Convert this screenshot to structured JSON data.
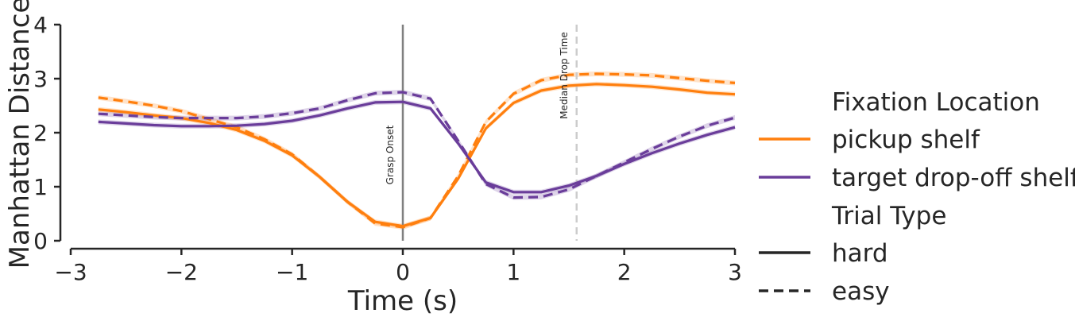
{
  "chart_data": {
    "type": "line",
    "xlabel": "Time (s)",
    "ylabel": "Manhattan Distance",
    "xlim": [
      -3,
      3
    ],
    "ylim": [
      0,
      4
    ],
    "xticks": [
      -3,
      -2,
      -1,
      0,
      1,
      2,
      3
    ],
    "yticks": [
      0,
      1,
      2,
      3,
      4
    ],
    "xtick_labels": [
      "−3",
      "−2",
      "−1",
      "0",
      "1",
      "2",
      "3"
    ],
    "ytick_labels": [
      "0",
      "1",
      "2",
      "3",
      "4"
    ],
    "x": [
      -2.75,
      -2.5,
      -2.25,
      -2.0,
      -1.75,
      -1.5,
      -1.25,
      -1.0,
      -0.75,
      -0.5,
      -0.25,
      0.0,
      0.25,
      0.5,
      0.75,
      1.0,
      1.25,
      1.5,
      1.75,
      2.0,
      2.25,
      2.5,
      2.75,
      3.0
    ],
    "series": [
      {
        "location": "pickup shelf",
        "trial": "hard",
        "color": "#ff7f0e",
        "dash": false,
        "values": [
          2.43,
          2.38,
          2.32,
          2.27,
          2.18,
          2.05,
          1.85,
          1.58,
          1.18,
          0.72,
          0.35,
          0.27,
          0.42,
          1.15,
          2.08,
          2.55,
          2.78,
          2.87,
          2.9,
          2.88,
          2.85,
          2.8,
          2.74,
          2.71
        ]
      },
      {
        "location": "pickup shelf",
        "trial": "easy",
        "color": "#ff7f0e",
        "dash": true,
        "values": [
          2.65,
          2.58,
          2.5,
          2.4,
          2.25,
          2.1,
          1.88,
          1.6,
          1.18,
          0.72,
          0.32,
          0.25,
          0.42,
          1.2,
          2.2,
          2.72,
          2.97,
          3.07,
          3.09,
          3.08,
          3.06,
          3.01,
          2.96,
          2.92
        ]
      },
      {
        "location": "target drop-off shelf",
        "trial": "hard",
        "color": "#6a3d9a",
        "dash": false,
        "values": [
          2.2,
          2.17,
          2.14,
          2.12,
          2.12,
          2.13,
          2.16,
          2.22,
          2.32,
          2.45,
          2.56,
          2.57,
          2.45,
          1.8,
          1.08,
          0.9,
          0.9,
          1.02,
          1.2,
          1.42,
          1.62,
          1.8,
          1.96,
          2.1
        ]
      },
      {
        "location": "target drop-off shelf",
        "trial": "easy",
        "color": "#6a3d9a",
        "dash": true,
        "values": [
          2.35,
          2.32,
          2.29,
          2.27,
          2.27,
          2.27,
          2.3,
          2.36,
          2.45,
          2.6,
          2.73,
          2.75,
          2.63,
          1.85,
          1.05,
          0.8,
          0.81,
          0.95,
          1.2,
          1.45,
          1.7,
          1.93,
          2.13,
          2.28
        ]
      }
    ],
    "vlines": [
      {
        "x": 0,
        "label": "Grasp Onset",
        "color": "#808080",
        "dash": false
      },
      {
        "x": 1.57,
        "label": "Median Drop Time",
        "color": "#cccccc",
        "dash": true
      }
    ],
    "legend": {
      "placement": "right",
      "hue_title": "Fixation Location",
      "hue_items": [
        {
          "label": "pickup shelf",
          "color": "#ff7f0e"
        },
        {
          "label": "target drop-off shelf",
          "color": "#6a3d9a"
        }
      ],
      "style_title": "Trial Type",
      "style_items": [
        {
          "label": "hard",
          "dash": false
        },
        {
          "label": "easy",
          "dash": true
        }
      ]
    }
  }
}
